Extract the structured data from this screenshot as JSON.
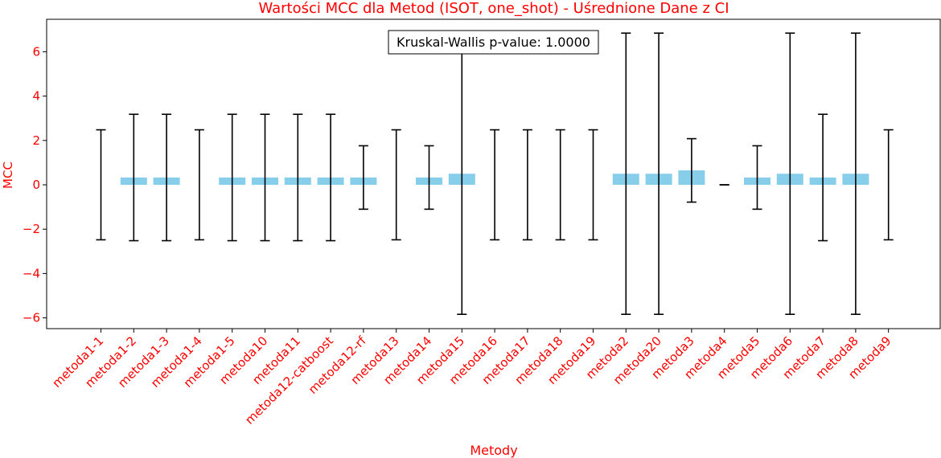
{
  "chart_data": {
    "type": "bar",
    "title": "Wartości MCC dla Metod (ISOT, one_shot) - Uśrednione Dane z CI",
    "xlabel": "Metody",
    "ylabel": "MCC",
    "ylim": [
      -6.5,
      7.4
    ],
    "yticks": [
      -6,
      -4,
      -2,
      0,
      2,
      4,
      6
    ],
    "ytick_labels": [
      "−6",
      "−4",
      "−2",
      "0",
      "2",
      "4",
      "6"
    ],
    "annotation": "Kruskal-Wallis p-value: 1.0000",
    "bar_color": "#87ceeb",
    "errorbar_color": "#000000",
    "text_color": "#ff0000",
    "categories": [
      "metoda1-1",
      "metoda1-2",
      "metoda1-3",
      "metoda1-4",
      "metoda1-5",
      "metoda10",
      "metoda11",
      "metoda12-catboost",
      "metoda12-rf",
      "metoda13",
      "metoda14",
      "metoda15",
      "metoda16",
      "metoda17",
      "metoda18",
      "metoda19",
      "metoda2",
      "metoda20",
      "metoda3",
      "metoda4",
      "metoda5",
      "metoda6",
      "metoda7",
      "metoda8",
      "metoda9"
    ],
    "values": [
      0,
      0.33,
      0.33,
      0,
      0.33,
      0.33,
      0.33,
      0.33,
      0.33,
      0,
      0.33,
      0.5,
      0,
      0,
      0,
      0,
      0.5,
      0.5,
      0.65,
      0,
      0.33,
      0.5,
      0.33,
      0.5,
      0
    ],
    "ci_low": [
      -2.48,
      -2.52,
      -2.52,
      -2.48,
      -2.52,
      -2.52,
      -2.52,
      -2.52,
      -1.1,
      -2.48,
      -1.1,
      -5.84,
      -2.48,
      -2.48,
      -2.48,
      -2.48,
      -5.84,
      -5.84,
      -0.78,
      0,
      -1.1,
      -5.84,
      -2.52,
      -5.84,
      -2.48
    ],
    "ci_high": [
      2.48,
      3.18,
      3.18,
      2.48,
      3.18,
      3.18,
      3.18,
      3.18,
      1.76,
      2.48,
      1.76,
      6.84,
      2.48,
      2.48,
      2.48,
      2.48,
      6.84,
      6.84,
      2.08,
      0,
      1.76,
      6.84,
      3.18,
      6.84,
      2.48
    ]
  }
}
